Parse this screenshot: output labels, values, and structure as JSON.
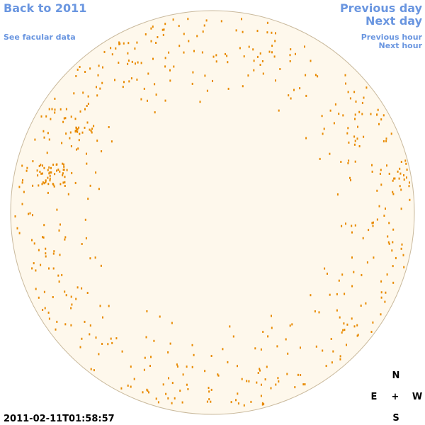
{
  "links": {
    "back": "Back to 2011",
    "see_facular": "See facular data",
    "previous_day": "Previous day",
    "next_day": "Next day",
    "previous_hour": "Previous hour",
    "next_hour": "Next hour"
  },
  "timestamp": "2011-02-11T01:58:57",
  "compass": {
    "north": "N",
    "east": "E",
    "center": "+",
    "west": "W",
    "south": "S"
  }
}
